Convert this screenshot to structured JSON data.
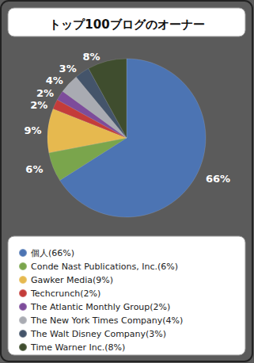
{
  "chart_data": {
    "type": "pie",
    "title": "トップ100ブログのオーナー",
    "categories": [
      "個人(66%)",
      "Conde Nast Publications, Inc.(6%)",
      "Gawker Media(9%)",
      "Techcrunch(2%)",
      "The Atlantic Monthly Group(2%)",
      "The New York Times Company(4%)",
      "The Walt Disney Company(3%)",
      "Time Warner Inc.(8%)"
    ],
    "values": [
      66,
      6,
      9,
      2,
      2,
      4,
      3,
      8
    ],
    "value_labels": [
      "66%",
      "6%",
      "9%",
      "2%",
      "2%",
      "4%",
      "3%",
      "8%"
    ],
    "colors": [
      "#4c74b3",
      "#7aa54c",
      "#e6b94f",
      "#c43c3a",
      "#7d4c9b",
      "#a9abb2",
      "#44546a",
      "#3f4d2e"
    ],
    "data_labels": true,
    "legend": "bottom"
  }
}
